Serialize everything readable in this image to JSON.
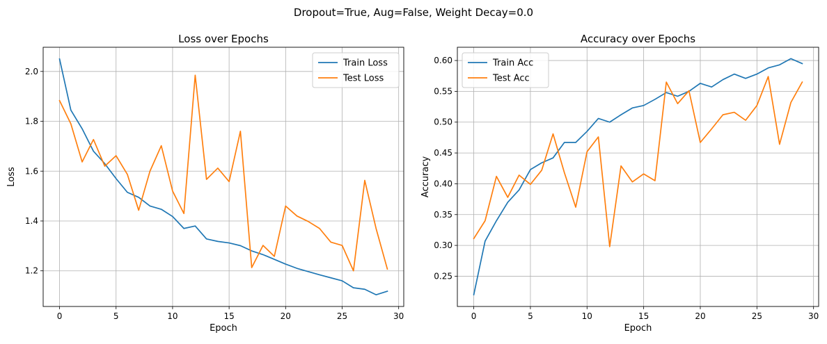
{
  "figure": {
    "suptitle": "Dropout=True, Aug=False, Weight Decay=0.0"
  },
  "chart_data": [
    {
      "type": "line",
      "title": "Loss over Epochs",
      "xlabel": "Epoch",
      "ylabel": "Loss",
      "xlim": [
        -1.45,
        30.45
      ],
      "ylim": [
        1.057,
        2.097
      ],
      "xticks": [
        0,
        5,
        10,
        15,
        20,
        25,
        30
      ],
      "yticks": [
        1.2,
        1.4,
        1.6,
        1.8,
        2.0
      ],
      "ytick_labels": [
        "1.2",
        "1.4",
        "1.6",
        "1.8",
        "2.0"
      ],
      "grid": true,
      "legend": "upper right",
      "x": [
        0,
        1,
        2,
        3,
        4,
        5,
        6,
        7,
        8,
        9,
        10,
        11,
        12,
        13,
        14,
        15,
        16,
        17,
        18,
        19,
        20,
        21,
        22,
        23,
        24,
        25,
        26,
        27,
        28,
        29
      ],
      "series": [
        {
          "name": "Train Loss",
          "color": "#1f77b4",
          "values": [
            2.05,
            1.845,
            1.77,
            1.68,
            1.63,
            1.57,
            1.515,
            1.495,
            1.46,
            1.447,
            1.418,
            1.37,
            1.38,
            1.328,
            1.318,
            1.312,
            1.301,
            1.28,
            1.265,
            1.246,
            1.227,
            1.21,
            1.197,
            1.184,
            1.172,
            1.16,
            1.132,
            1.126,
            1.104,
            1.118
          ]
        },
        {
          "name": "Test Loss",
          "color": "#ff7f0e",
          "values": [
            1.883,
            1.79,
            1.637,
            1.727,
            1.62,
            1.662,
            1.587,
            1.443,
            1.6,
            1.702,
            1.52,
            1.43,
            1.985,
            1.567,
            1.612,
            1.558,
            1.76,
            1.213,
            1.302,
            1.258,
            1.46,
            1.42,
            1.398,
            1.37,
            1.315,
            1.302,
            1.2,
            1.563,
            1.37,
            1.207
          ]
        }
      ]
    },
    {
      "type": "line",
      "title": "Accuracy over Epochs",
      "xlabel": "Epoch",
      "ylabel": "Accuracy",
      "xlim": [
        -1.45,
        30.45
      ],
      "ylim": [
        0.2009,
        0.6215
      ],
      "xticks": [
        0,
        5,
        10,
        15,
        20,
        25,
        30
      ],
      "yticks": [
        0.25,
        0.3,
        0.35,
        0.4,
        0.45,
        0.5,
        0.55,
        0.6
      ],
      "ytick_labels": [
        "0.25",
        "0.30",
        "0.35",
        "0.40",
        "0.45",
        "0.50",
        "0.55",
        "0.60"
      ],
      "grid": true,
      "legend": "upper left",
      "x": [
        0,
        1,
        2,
        3,
        4,
        5,
        6,
        7,
        8,
        9,
        10,
        11,
        12,
        13,
        14,
        15,
        16,
        17,
        18,
        19,
        20,
        21,
        22,
        23,
        24,
        25,
        26,
        27,
        28,
        29
      ],
      "series": [
        {
          "name": "Train Acc",
          "color": "#1f77b4",
          "values": [
            0.22,
            0.307,
            0.34,
            0.37,
            0.39,
            0.423,
            0.434,
            0.442,
            0.467,
            0.467,
            0.485,
            0.506,
            0.5,
            0.512,
            0.523,
            0.527,
            0.537,
            0.548,
            0.542,
            0.55,
            0.563,
            0.557,
            0.569,
            0.578,
            0.571,
            0.578,
            0.588,
            0.593,
            0.603,
            0.595
          ]
        },
        {
          "name": "Test Acc",
          "color": "#ff7f0e",
          "values": [
            0.311,
            0.34,
            0.412,
            0.378,
            0.414,
            0.399,
            0.422,
            0.481,
            0.418,
            0.362,
            0.452,
            0.476,
            0.298,
            0.429,
            0.403,
            0.416,
            0.405,
            0.565,
            0.53,
            0.551,
            0.467,
            0.489,
            0.512,
            0.516,
            0.503,
            0.527,
            0.574,
            0.464,
            0.532,
            0.565
          ]
        }
      ]
    }
  ]
}
